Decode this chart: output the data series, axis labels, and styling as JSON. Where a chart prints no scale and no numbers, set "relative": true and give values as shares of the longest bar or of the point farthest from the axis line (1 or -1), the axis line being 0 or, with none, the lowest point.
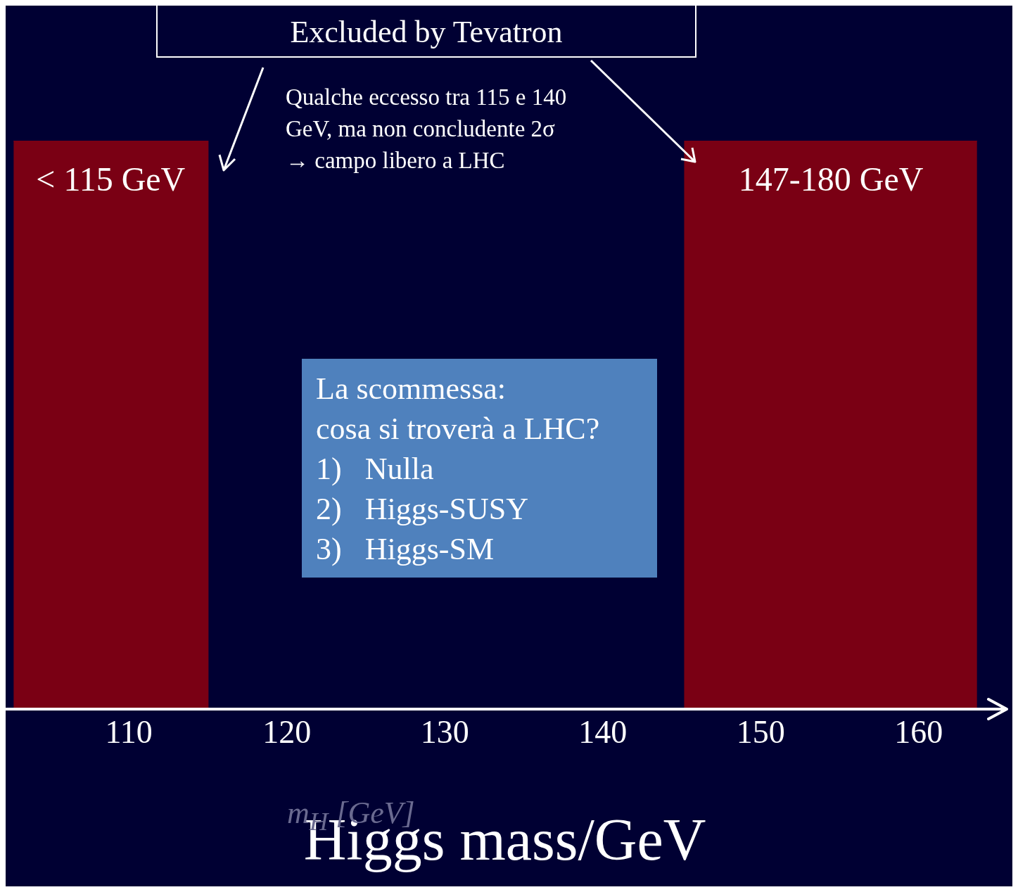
{
  "chart_data": {
    "type": "area",
    "relative": true,
    "xlabel": "Higgs mass/GeV",
    "xlim": [
      102.2,
      165.4
    ],
    "xticks": [
      110,
      120,
      130,
      140,
      150,
      160
    ],
    "x": [
      102.7,
      115,
      115,
      145.2,
      145.2,
      163.7
    ],
    "series": [
      {
        "color": "#7a0014",
        "values": [
          1,
          1,
          0,
          0,
          1,
          1
        ]
      }
    ],
    "annotations": [
      "Excluded by Tevatron",
      "Qualche eccesso tra 115 e 140\nGeV, ma non concludente 2σ\n→ campo libero a LHC",
      "La scommessa:\ncosa si troverà a LHC?\n1)   Nulla\n2)   Higgs-SUSY\n3)   Higgs-SM",
      "m$_{H}$ [GeV]",
      "< 115 GeV",
      "147-180 GeV"
    ]
  }
}
